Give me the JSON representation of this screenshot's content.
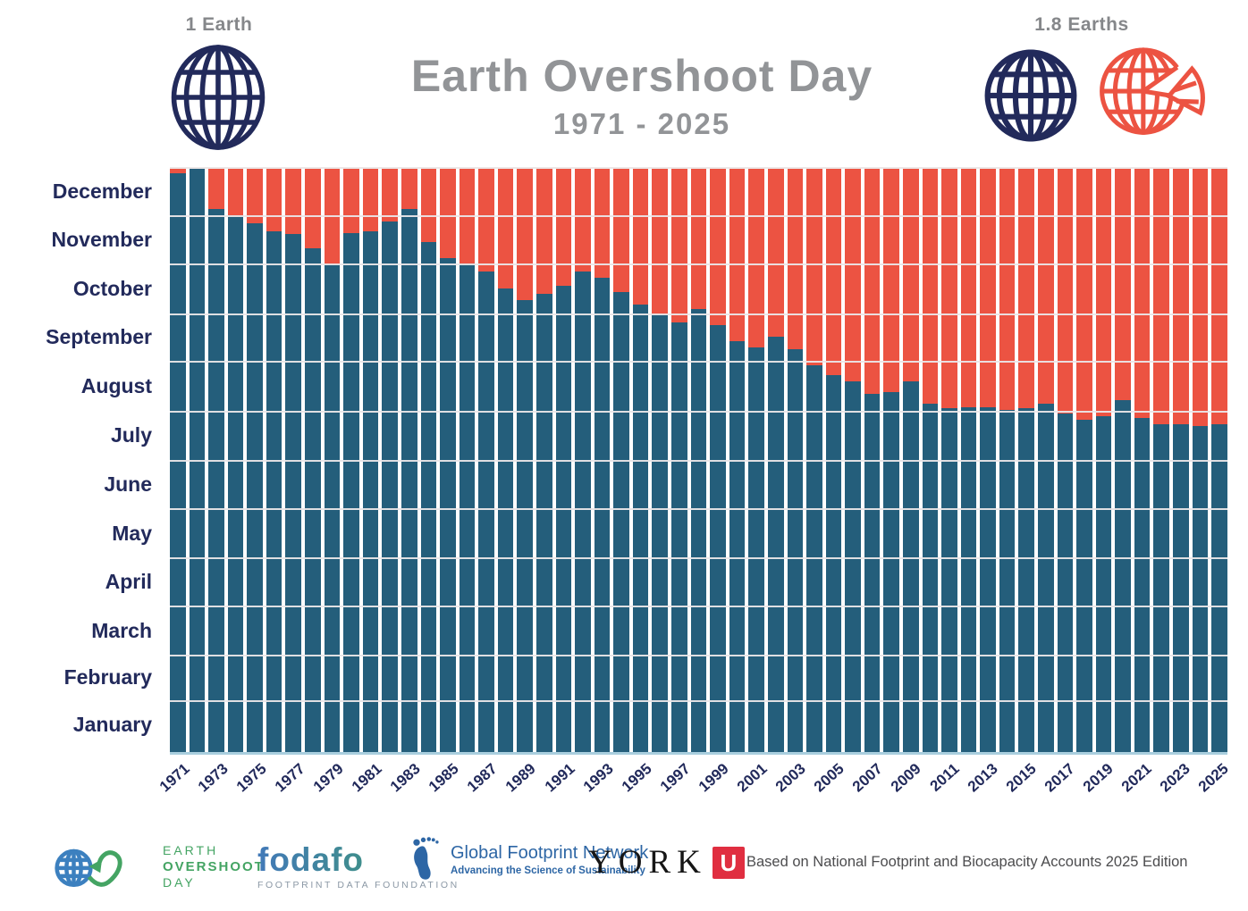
{
  "header": {
    "one_earth_label": "1 Earth",
    "earths_label": "1.8 Earths",
    "title": "Earth Overshoot Day",
    "subtitle": "1971 - 2025"
  },
  "chart_data": {
    "type": "bar",
    "stacked": true,
    "title": "Earth Overshoot Day",
    "subtitle": "1971 - 2025",
    "description": "Stacked bars per year: teal = portion of year before Earth Overshoot Day (day of year), orange-red = overshoot portion after that date until Dec 31.",
    "xlabel": "",
    "ylabel": "Month of year (January bottom to December top)",
    "ylim_days": [
      0,
      365
    ],
    "grid": "horizontal month boundaries",
    "legend": {
      "position": "none",
      "one_earth_icon": "navy wireframe globe",
      "overshoot_icon": "orange globe with wedge removed"
    },
    "colors": {
      "before_overshoot": "#245e7b",
      "overshoot": "#ec5342",
      "axis_text": "#222a5b",
      "title_gray": "#929497",
      "baseline_blue": "#a9cede"
    },
    "months": [
      {
        "label": "January",
        "days": 31
      },
      {
        "label": "February",
        "days": 28
      },
      {
        "label": "March",
        "days": 31
      },
      {
        "label": "April",
        "days": 30
      },
      {
        "label": "May",
        "days": 31
      },
      {
        "label": "June",
        "days": 30
      },
      {
        "label": "July",
        "days": 31
      },
      {
        "label": "August",
        "days": 31
      },
      {
        "label": "September",
        "days": 30
      },
      {
        "label": "October",
        "days": 31
      },
      {
        "label": "November",
        "days": 30
      },
      {
        "label": "December",
        "days": 31
      }
    ],
    "x_ticks": [
      1971,
      1973,
      1975,
      1977,
      1979,
      1981,
      1983,
      1985,
      1987,
      1989,
      1991,
      1993,
      1995,
      1997,
      1999,
      2001,
      2003,
      2005,
      2007,
      2009,
      2011,
      2013,
      2015,
      2017,
      2019,
      2021,
      2023,
      2025
    ],
    "series": [
      {
        "year": 1971,
        "overshoot_date": "Dec 28",
        "day_of_year": 362
      },
      {
        "year": 1972,
        "overshoot_date": "Dec 31",
        "day_of_year": 365
      },
      {
        "year": 1973,
        "overshoot_date": "Dec 6",
        "day_of_year": 340
      },
      {
        "year": 1974,
        "overshoot_date": "Dec 2",
        "day_of_year": 336
      },
      {
        "year": 1975,
        "overshoot_date": "Nov 27",
        "day_of_year": 331
      },
      {
        "year": 1976,
        "overshoot_date": "Nov 22",
        "day_of_year": 326
      },
      {
        "year": 1977,
        "overshoot_date": "Nov 20",
        "day_of_year": 324
      },
      {
        "year": 1978,
        "overshoot_date": "Nov 11",
        "day_of_year": 315
      },
      {
        "year": 1979,
        "overshoot_date": "Nov 1",
        "day_of_year": 305
      },
      {
        "year": 1980,
        "overshoot_date": "Nov 21",
        "day_of_year": 325
      },
      {
        "year": 1981,
        "overshoot_date": "Nov 22",
        "day_of_year": 326
      },
      {
        "year": 1982,
        "overshoot_date": "Nov 28",
        "day_of_year": 332
      },
      {
        "year": 1983,
        "overshoot_date": "Dec 6",
        "day_of_year": 340
      },
      {
        "year": 1984,
        "overshoot_date": "Nov 15",
        "day_of_year": 319
      },
      {
        "year": 1985,
        "overshoot_date": "Nov 5",
        "day_of_year": 309
      },
      {
        "year": 1986,
        "overshoot_date": "Nov 2",
        "day_of_year": 306
      },
      {
        "year": 1987,
        "overshoot_date": "Oct 28",
        "day_of_year": 301
      },
      {
        "year": 1988,
        "overshoot_date": "Oct 17",
        "day_of_year": 290
      },
      {
        "year": 1989,
        "overshoot_date": "Oct 10",
        "day_of_year": 283
      },
      {
        "year": 1990,
        "overshoot_date": "Oct 14",
        "day_of_year": 287
      },
      {
        "year": 1991,
        "overshoot_date": "Oct 19",
        "day_of_year": 292
      },
      {
        "year": 1992,
        "overshoot_date": "Oct 28",
        "day_of_year": 301
      },
      {
        "year": 1993,
        "overshoot_date": "Oct 24",
        "day_of_year": 297
      },
      {
        "year": 1994,
        "overshoot_date": "Oct 15",
        "day_of_year": 288
      },
      {
        "year": 1995,
        "overshoot_date": "Oct 7",
        "day_of_year": 280
      },
      {
        "year": 1996,
        "overshoot_date": "Oct 1",
        "day_of_year": 274
      },
      {
        "year": 1997,
        "overshoot_date": "Sep 26",
        "day_of_year": 269
      },
      {
        "year": 1998,
        "overshoot_date": "Oct 4",
        "day_of_year": 277
      },
      {
        "year": 1999,
        "overshoot_date": "Sep 24",
        "day_of_year": 267
      },
      {
        "year": 2000,
        "overshoot_date": "Sep 14",
        "day_of_year": 257
      },
      {
        "year": 2001,
        "overshoot_date": "Sep 10",
        "day_of_year": 253
      },
      {
        "year": 2002,
        "overshoot_date": "Sep 17",
        "day_of_year": 260
      },
      {
        "year": 2003,
        "overshoot_date": "Sep 9",
        "day_of_year": 252
      },
      {
        "year": 2004,
        "overshoot_date": "Aug 30",
        "day_of_year": 242
      },
      {
        "year": 2005,
        "overshoot_date": "Aug 24",
        "day_of_year": 236
      },
      {
        "year": 2006,
        "overshoot_date": "Aug 20",
        "day_of_year": 232
      },
      {
        "year": 2007,
        "overshoot_date": "Aug 12",
        "day_of_year": 224
      },
      {
        "year": 2008,
        "overshoot_date": "Aug 13",
        "day_of_year": 225
      },
      {
        "year": 2009,
        "overshoot_date": "Aug 20",
        "day_of_year": 232
      },
      {
        "year": 2010,
        "overshoot_date": "Aug 6",
        "day_of_year": 218
      },
      {
        "year": 2011,
        "overshoot_date": "Aug 3",
        "day_of_year": 215
      },
      {
        "year": 2012,
        "overshoot_date": "Aug 4",
        "day_of_year": 216
      },
      {
        "year": 2013,
        "overshoot_date": "Aug 4",
        "day_of_year": 216
      },
      {
        "year": 2014,
        "overshoot_date": "Aug 2",
        "day_of_year": 214
      },
      {
        "year": 2015,
        "overshoot_date": "Aug 3",
        "day_of_year": 215
      },
      {
        "year": 2016,
        "overshoot_date": "Aug 6",
        "day_of_year": 218
      },
      {
        "year": 2017,
        "overshoot_date": "Jul 31",
        "day_of_year": 212
      },
      {
        "year": 2018,
        "overshoot_date": "Jul 27",
        "day_of_year": 208
      },
      {
        "year": 2019,
        "overshoot_date": "Jul 29",
        "day_of_year": 210
      },
      {
        "year": 2020,
        "overshoot_date": "Aug 8",
        "day_of_year": 220
      },
      {
        "year": 2021,
        "overshoot_date": "Jul 28",
        "day_of_year": 209
      },
      {
        "year": 2022,
        "overshoot_date": "Jul 24",
        "day_of_year": 205
      },
      {
        "year": 2023,
        "overshoot_date": "Jul 24",
        "day_of_year": 205
      },
      {
        "year": 2024,
        "overshoot_date": "Jul 23",
        "day_of_year": 204
      },
      {
        "year": 2025,
        "overshoot_date": "Jul 24",
        "day_of_year": 205
      }
    ]
  },
  "footer": {
    "eod_logo": {
      "line1": "EARTH",
      "line2": "OVERSHOOT",
      "line3": "DAY"
    },
    "fodafo": {
      "name": "fodafo",
      "sub": "FOOTPRINT DATA FOUNDATION"
    },
    "gfn": {
      "name": "Global Footprint Network",
      "tagline": "Advancing the Science of Sustainability"
    },
    "york": {
      "word": "YORK",
      "u": "U"
    },
    "attribution": "Based on National Footprint and Biocapacity Accounts 2025 Edition"
  }
}
